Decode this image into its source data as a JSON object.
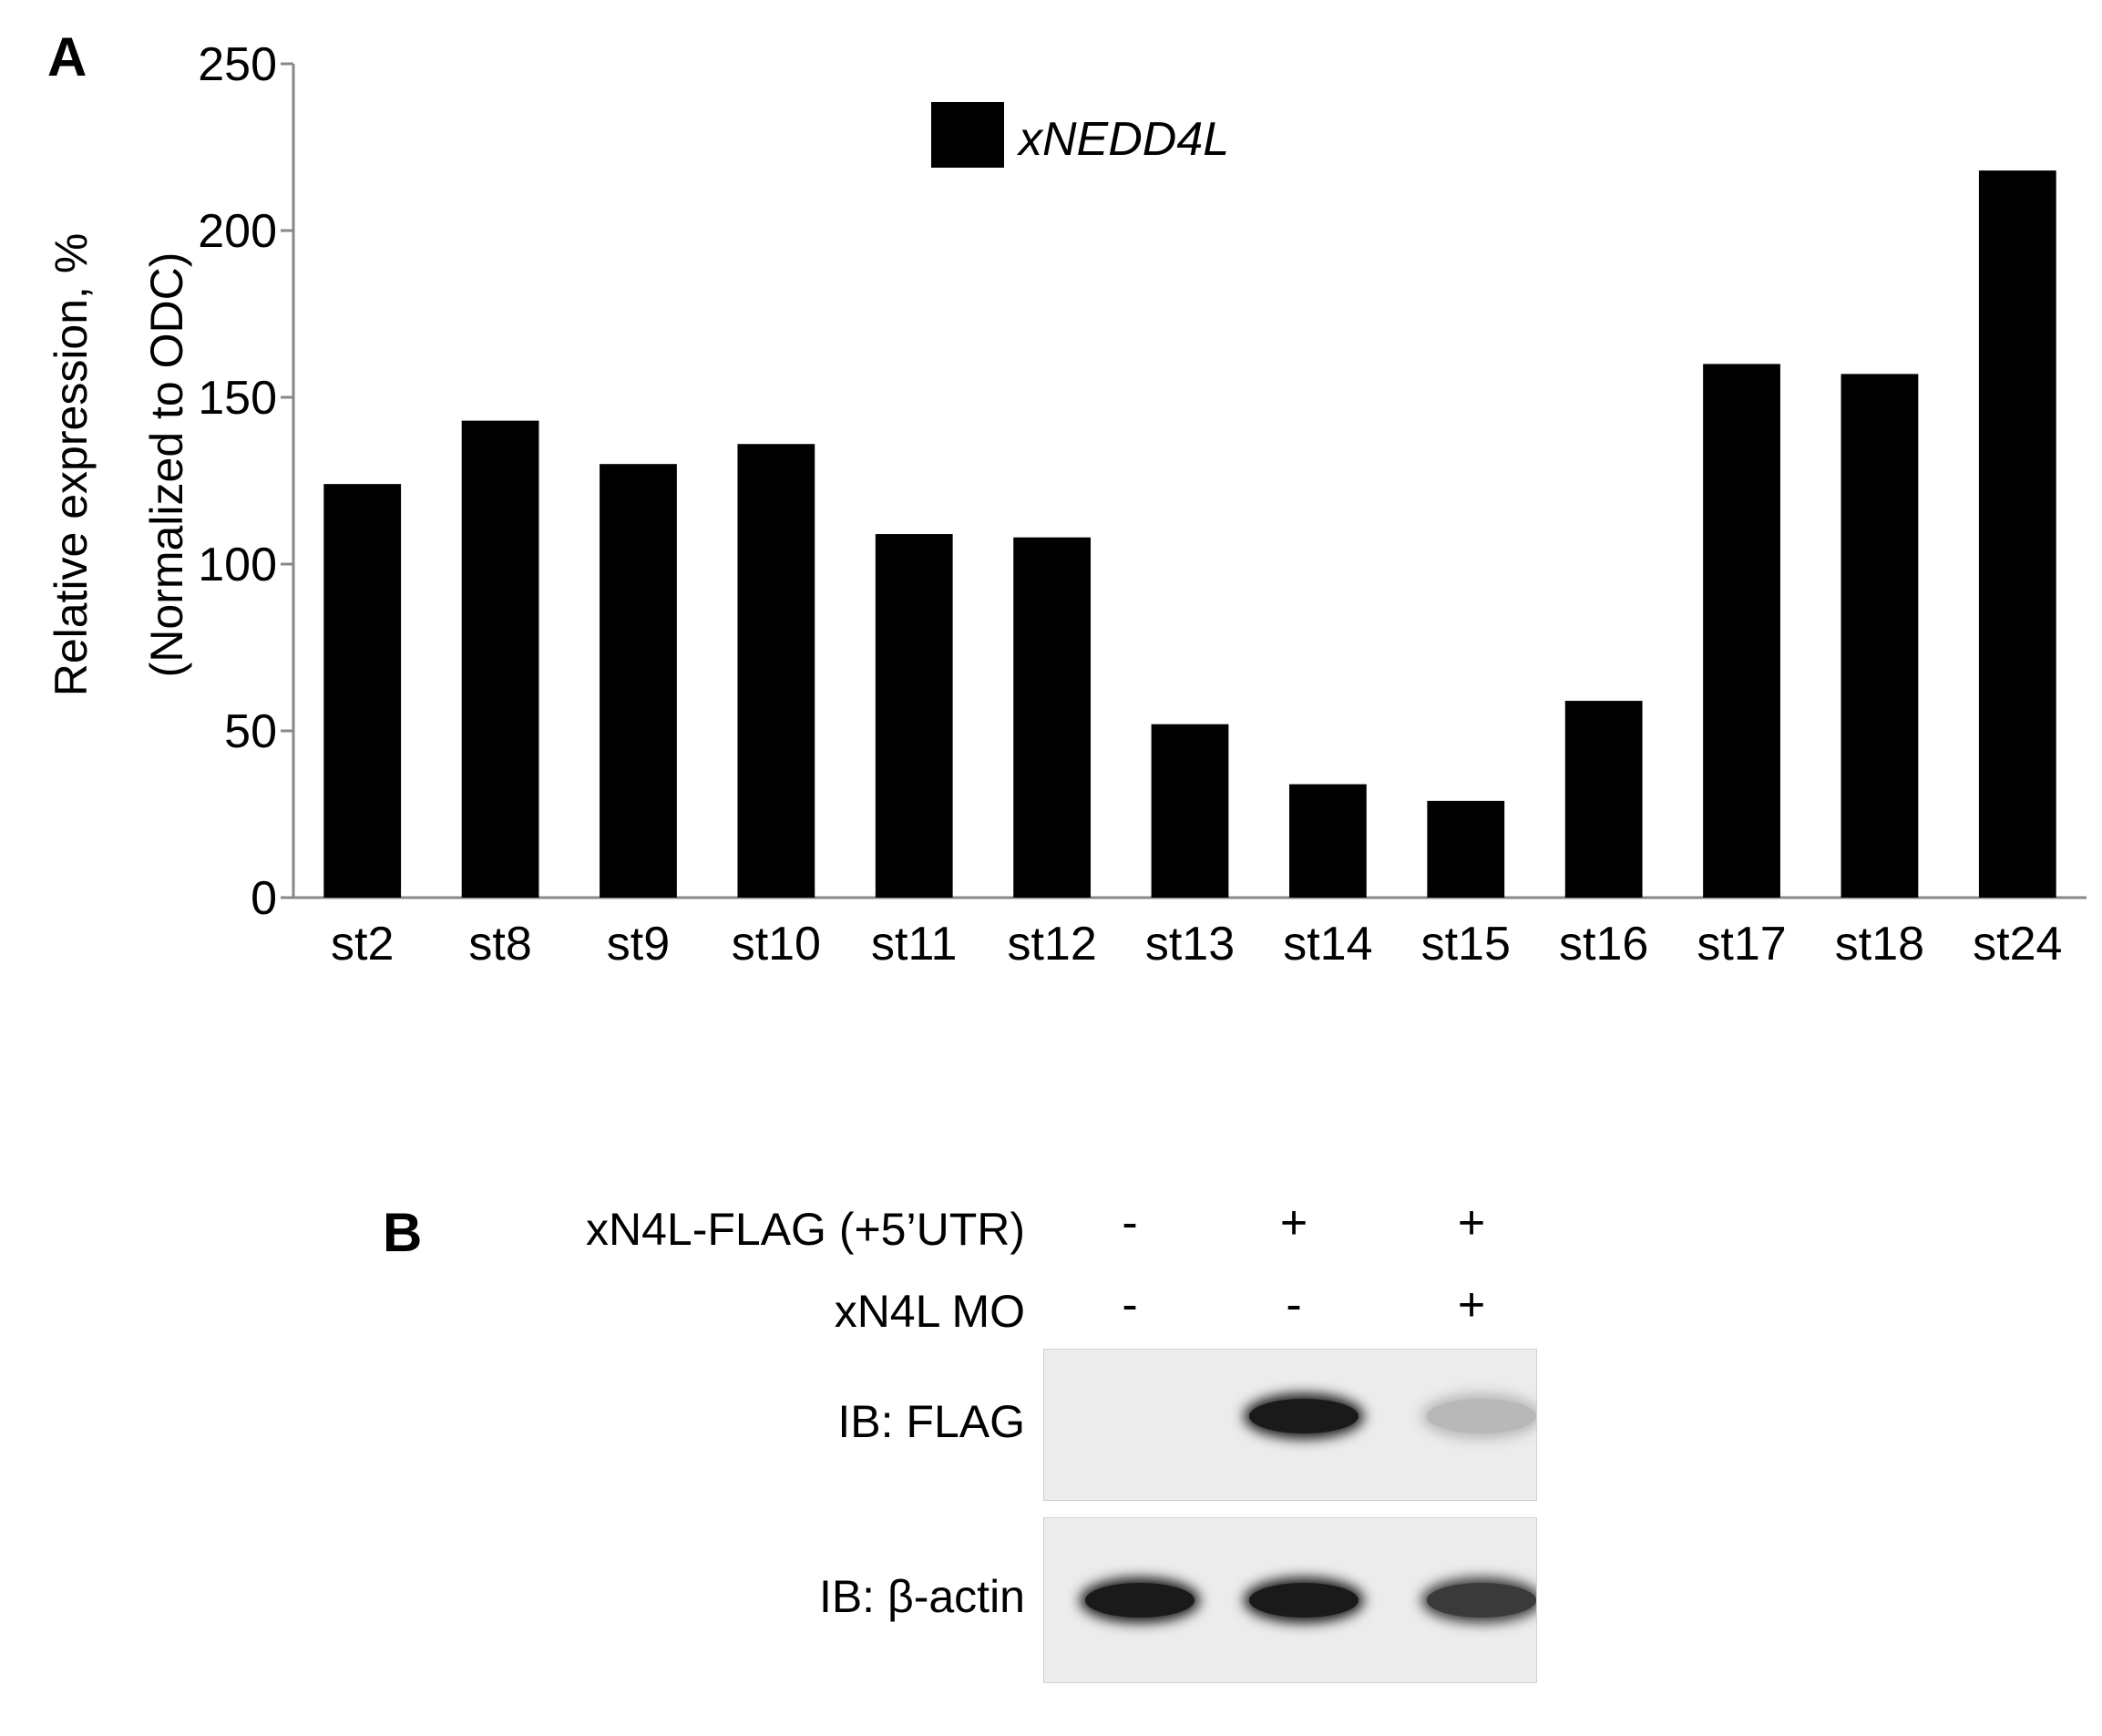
{
  "panel_a": {
    "letter": "A",
    "chart_data": {
      "type": "bar",
      "title": "",
      "categories": [
        "st2",
        "st8",
        "st9",
        "st10",
        "st11",
        "st12",
        "st13",
        "st14",
        "st15",
        "st16",
        "st17",
        "st18",
        "st24"
      ],
      "series": [
        {
          "name": "xNEDD4L",
          "values": [
            124,
            143,
            130,
            136,
            109,
            108,
            52,
            34,
            29,
            59,
            160,
            157,
            218
          ],
          "color": "#000000"
        }
      ],
      "xlabel": "",
      "ylabel": "Relative expression, %",
      "ylabel2": "(Normalized to ODC)",
      "ylim": [
        0,
        250
      ],
      "yticks": [
        0,
        50,
        100,
        150,
        200,
        250
      ],
      "grid": false,
      "legend_position": "top-center"
    }
  },
  "panel_b": {
    "letter": "B",
    "rows": [
      {
        "label": "xN4L-FLAG (+5’UTR)",
        "signs": [
          "-",
          "+",
          "+"
        ]
      },
      {
        "label": "xN4L MO",
        "signs": [
          "-",
          "-",
          "+"
        ]
      }
    ],
    "blots": [
      {
        "label": "IB: FLAG",
        "band_intensity": [
          0.0,
          1.0,
          0.25
        ]
      },
      {
        "label": "IB: β-actin",
        "band_intensity": [
          1.0,
          1.0,
          0.85
        ]
      }
    ]
  }
}
